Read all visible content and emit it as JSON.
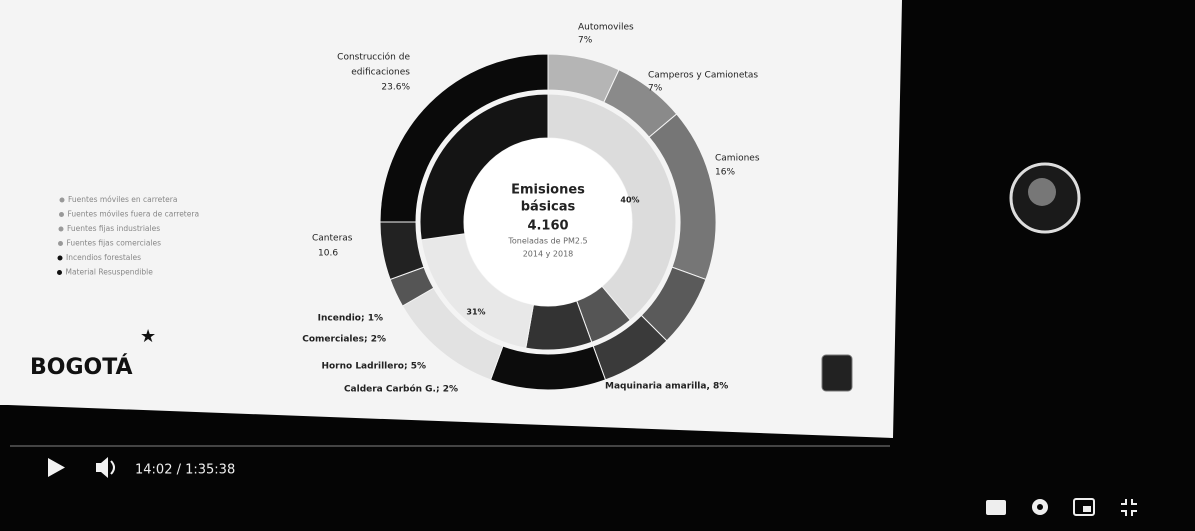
{
  "slide": {
    "center": {
      "title_1": "Emisiones",
      "title_2": "básicas",
      "total": "4.160",
      "unit": "Toneladas de PM2.5",
      "period": "2014 y 2018"
    },
    "labels": [
      {
        "name": "Automoviles",
        "share": "7%"
      },
      {
        "name": "Camperos y Camionetas",
        "share": "7%"
      },
      {
        "name": "Camiones",
        "share": "16%"
      },
      {
        "name_1": "Construcción de",
        "name_2": "edificaciones",
        "share": "23.6%"
      },
      {
        "name": "Canteras",
        "share": "10.6"
      }
    ],
    "bold_labels": [
      "Incendio; 1%",
      "Comerciales; 2%",
      "Horno Ladrillero; 5%",
      "Caldera Carbón G.; 2%",
      "Maquinaria amarilla, 8%"
    ],
    "inner_labels": [
      "40%",
      "31%"
    ],
    "legend": [
      "Fuentes móviles en carretera",
      "Fuentes móviles fuera de carretera",
      "Fuentes fijas industriales",
      "Fuentes fijas comerciales",
      "Incendios forestales",
      "Material Resuspendible"
    ],
    "logo": "BOGOTÁ"
  },
  "player": {
    "time": "14:02 / 1:35:38"
  }
}
